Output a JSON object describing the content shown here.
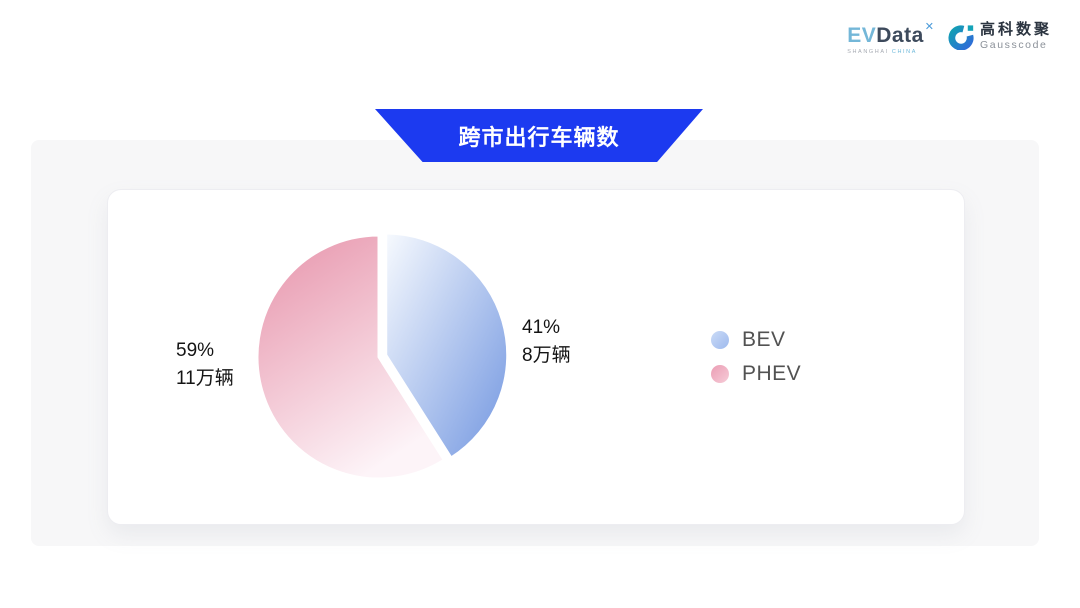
{
  "header": {
    "evdata": {
      "ev": "EV",
      "data": "Data",
      "mark": "✕",
      "tagline_left": "SHANGHAI",
      "tagline_right": "CHINA"
    },
    "gausscode": {
      "name_cn": "高科数聚",
      "name_en": "Gausscode"
    }
  },
  "banner": {
    "title": "跨市出行车辆数"
  },
  "colors": {
    "banner_blue": "#1c3af0",
    "panel_bg": "#f7f7f8",
    "bev_blue": "#83a3e4",
    "phev_pink": "#e794ab",
    "label_text": "#141414",
    "legend_text": "#525252"
  },
  "chart_data": {
    "type": "pie",
    "title": "跨市出行车辆数",
    "unit": "万辆",
    "start_angle_deg": 0,
    "direction": "clockwise",
    "legend_position": "right",
    "series": [
      {
        "name": "BEV",
        "percent": 41,
        "value": 8,
        "percent_label": "41%",
        "value_label": "8万辆",
        "exploded": true,
        "gradient": [
          "#f7fafe",
          "#83a3e4"
        ],
        "legend_dot_gradient": [
          "#cbdbf7",
          "#9db9ed"
        ]
      },
      {
        "name": "PHEV",
        "percent": 59,
        "value": 11,
        "percent_label": "59%",
        "value_label": "11万辆",
        "exploded": false,
        "gradient": [
          "#e794ab",
          "#fdf4f8"
        ],
        "legend_dot_gradient": [
          "#eb9db4",
          "#f6ccd8"
        ]
      }
    ]
  }
}
